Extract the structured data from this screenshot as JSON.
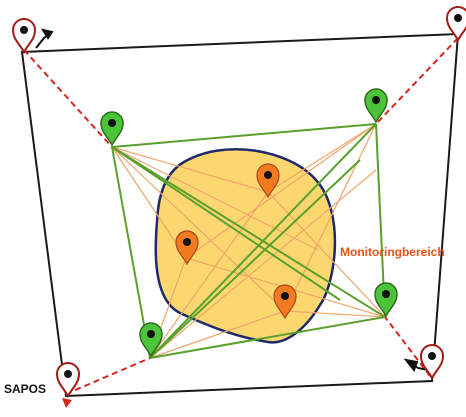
{
  "labels": {
    "monitoring_area": "Monitoringbereich",
    "reference_station": "SAPOS"
  },
  "colors": {
    "outer_frame": "#1a1a1a",
    "sapos_ray": "#d9261c",
    "green_network": "#5aa02c",
    "orange_network": "#f2a56b",
    "monitoring_fill": "#fcd770",
    "monitoring_stroke": "#1f2a6b",
    "monitoring_label": "#e8531c",
    "marker_white": "#ffffff",
    "marker_green": "#4cc43a",
    "marker_orange": "#f27a1f",
    "marker_outline": "#a01d16"
  },
  "marker_groups": {
    "sapos": {
      "count": 4,
      "icon": "map-pin-white-icon"
    },
    "green": {
      "count": 4,
      "icon": "map-pin-green-icon"
    },
    "orange": {
      "count": 3,
      "icon": "map-pin-orange-icon"
    }
  }
}
